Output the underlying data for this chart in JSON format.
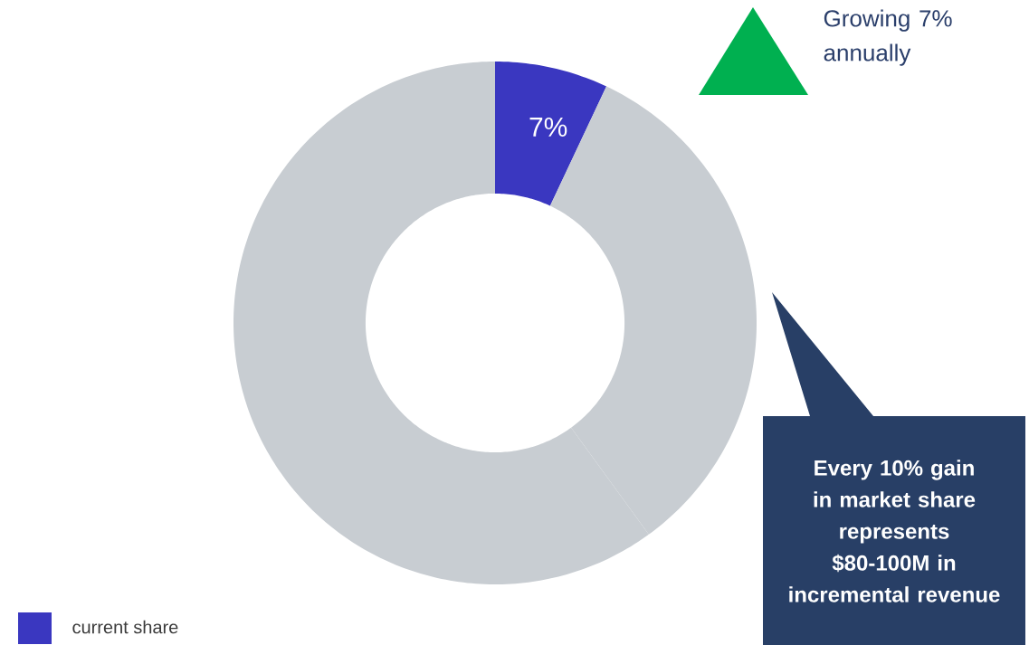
{
  "chart_data": {
    "type": "donut",
    "categories": [
      "current share",
      null,
      null
    ],
    "values": [
      7,
      33,
      60
    ],
    "colors": [
      "#3a37c0",
      "#c8cdd2",
      "#c8cdd2"
    ],
    "value_labels": [
      "7%",
      null,
      null
    ],
    "legend": "bottom left",
    "annotations": [
      "Growing 7% annually",
      "Every 10% gain in market share represents $80-100M in incremental revenue"
    ]
  }
}
